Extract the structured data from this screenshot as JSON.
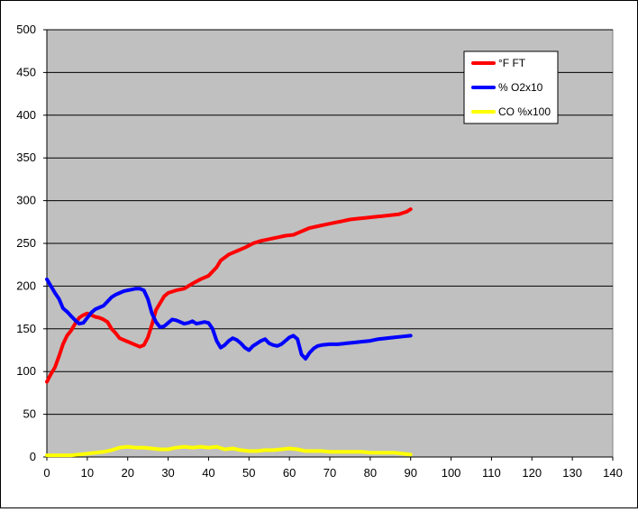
{
  "chart_data": {
    "type": "line",
    "title": "",
    "xlabel": "",
    "ylabel": "",
    "xlim": [
      0,
      140
    ],
    "ylim": [
      0,
      500
    ],
    "x_ticks": [
      "0",
      "10",
      "20",
      "30",
      "40",
      "50",
      "60",
      "70",
      "80",
      "90",
      "100",
      "110",
      "120",
      "130",
      "140"
    ],
    "y_ticks": [
      "0",
      "50",
      "100",
      "150",
      "200",
      "250",
      "300",
      "350",
      "400",
      "450",
      "500"
    ],
    "grid": "horizontal",
    "plot_background": "#c0c0c0",
    "legend_position": "top-right",
    "series": [
      {
        "name": "°F FT",
        "color": "#ff0000",
        "x": [
          0,
          1,
          2,
          3,
          4,
          5,
          6,
          7,
          8,
          9,
          10,
          11,
          12,
          13,
          14,
          15,
          16,
          17,
          18,
          19,
          20,
          21,
          22,
          23,
          24,
          25,
          26,
          27,
          28,
          29,
          30,
          32,
          34,
          36,
          38,
          40,
          42,
          43,
          45,
          47,
          49,
          51,
          53,
          55,
          57,
          59,
          61,
          63,
          65,
          67,
          69,
          71,
          73,
          75,
          77,
          79,
          81,
          83,
          85,
          87,
          89,
          90
        ],
        "y": [
          88,
          97,
          105,
          118,
          132,
          142,
          148,
          156,
          163,
          166,
          168,
          166,
          164,
          163,
          161,
          158,
          150,
          145,
          139,
          137,
          135,
          133,
          131,
          129,
          131,
          140,
          155,
          172,
          180,
          188,
          192,
          195,
          197,
          203,
          208,
          212,
          222,
          230,
          237,
          241,
          245,
          250,
          253,
          255,
          257,
          259,
          260,
          264,
          268,
          270,
          272,
          274,
          276,
          278,
          279,
          280,
          281,
          282,
          283,
          284,
          287,
          290
        ]
      },
      {
        "name": "% O2x10",
        "color": "#0000ff",
        "x": [
          0,
          1,
          2,
          3,
          4,
          5,
          6,
          7,
          8,
          9,
          10,
          11,
          12,
          13,
          14,
          15,
          16,
          17,
          18,
          19,
          20,
          21,
          22,
          23,
          24,
          25,
          26,
          27,
          28,
          29,
          30,
          31,
          32,
          33,
          34,
          35,
          36,
          37,
          38,
          39,
          40,
          41,
          42,
          43,
          44,
          45,
          46,
          47,
          48,
          49,
          50,
          51,
          52,
          53,
          54,
          55,
          56,
          57,
          58,
          59,
          60,
          61,
          62,
          63,
          64,
          65,
          66,
          67,
          68,
          70,
          72,
          74,
          76,
          78,
          80,
          82,
          84,
          86,
          88,
          90
        ],
        "y": [
          208,
          200,
          192,
          185,
          174,
          170,
          165,
          160,
          156,
          157,
          163,
          169,
          173,
          175,
          177,
          182,
          187,
          190,
          192,
          194,
          195,
          196,
          197,
          197,
          195,
          185,
          168,
          158,
          152,
          153,
          157,
          161,
          160,
          158,
          156,
          157,
          159,
          156,
          157,
          158,
          157,
          150,
          136,
          128,
          131,
          136,
          139,
          137,
          133,
          128,
          125,
          130,
          133,
          136,
          138,
          133,
          131,
          130,
          132,
          136,
          140,
          142,
          138,
          120,
          115,
          122,
          127,
          130,
          131,
          132,
          132,
          133,
          134,
          135,
          136,
          138,
          139,
          140,
          141,
          142
        ]
      },
      {
        "name": "CO %x100",
        "color": "#ffff00",
        "x": [
          0,
          2,
          4,
          6,
          8,
          10,
          12,
          14,
          16,
          18,
          20,
          22,
          24,
          26,
          28,
          30,
          32,
          34,
          36,
          38,
          40,
          42,
          44,
          46,
          48,
          50,
          52,
          54,
          56,
          58,
          60,
          62,
          64,
          66,
          68,
          70,
          72,
          74,
          76,
          78,
          80,
          82,
          84,
          86,
          88,
          90
        ],
        "y": [
          2,
          2,
          2,
          2,
          3,
          4,
          5,
          6,
          8,
          11,
          12,
          11,
          11,
          10,
          9,
          9,
          11,
          12,
          11,
          12,
          11,
          12,
          9,
          10,
          8,
          7,
          7,
          8,
          8,
          9,
          10,
          9,
          7,
          7,
          7,
          6,
          6,
          6,
          6,
          6,
          5,
          5,
          5,
          5,
          4,
          3
        ]
      }
    ]
  }
}
